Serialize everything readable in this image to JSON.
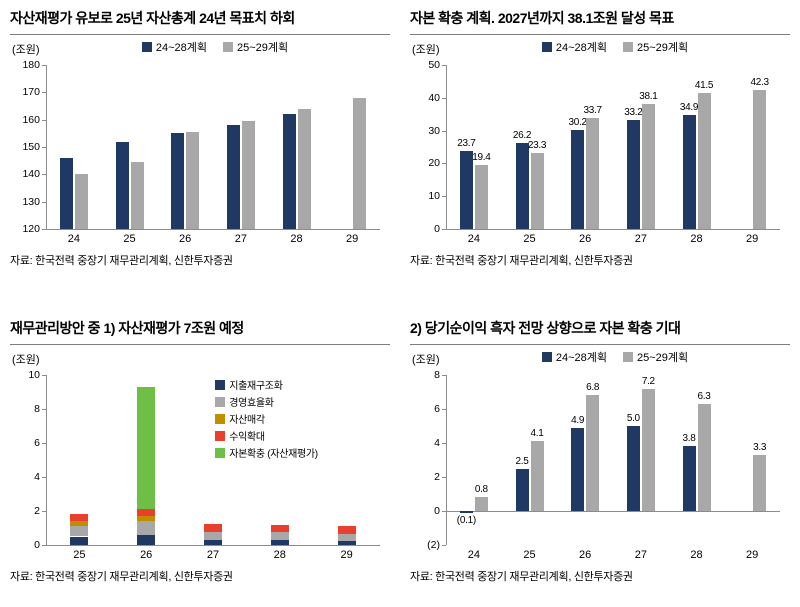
{
  "colors": {
    "navy": "#1f3864",
    "gray": "#a8a8a8",
    "olive": "#bf8f00",
    "red": "#e8402d",
    "green": "#6fbe45",
    "axis": "#8c8c8c",
    "title_rule": "#7f7f7f"
  },
  "chart_data": [
    {
      "type": "bar",
      "title": "자산재평가 유보로 25년 자산총계 24년 목표치 하회",
      "unit": "(조원)",
      "source": "자료: 한국전력 중장기 재무관리계획, 신한투자증권",
      "categories": [
        "24",
        "25",
        "26",
        "27",
        "28",
        "29"
      ],
      "series": [
        {
          "name": "24~28계획",
          "color": "navy",
          "values": [
            146,
            152,
            155,
            158,
            162,
            null
          ]
        },
        {
          "name": "25~29계획",
          "color": "gray",
          "values": [
            140,
            144.5,
            155.5,
            159.5,
            164,
            168
          ]
        }
      ],
      "ylim": [
        120,
        180
      ],
      "yticks": [
        "120",
        "130",
        "140",
        "150",
        "160",
        "170",
        "180"
      ],
      "legend_position": "top",
      "grid": false
    },
    {
      "type": "bar",
      "title": "자본 확충 계획. 2027년까지 38.1조원 달성 목표",
      "unit": "(조원)",
      "source": "자료: 한국전력 중장기 재무관리계획, 신한투자증권",
      "categories": [
        "24",
        "25",
        "26",
        "27",
        "28",
        "29"
      ],
      "series": [
        {
          "name": "24~28계획",
          "color": "navy",
          "values": [
            23.7,
            26.2,
            30.2,
            33.2,
            34.9,
            null
          ]
        },
        {
          "name": "25~29계획",
          "color": "gray",
          "values": [
            19.4,
            23.3,
            33.7,
            38.1,
            41.5,
            42.3
          ]
        }
      ],
      "labels": [
        [
          "23.7",
          "26.2",
          "30.2",
          "33.2",
          "34.9",
          null
        ],
        [
          "19.4",
          "23.3",
          "33.7",
          "38.1",
          "41.5",
          "42.3"
        ]
      ],
      "ylim": [
        0,
        50
      ],
      "yticks": [
        "0",
        "10",
        "20",
        "30",
        "40",
        "50"
      ],
      "legend_position": "top",
      "grid": false
    },
    {
      "type": "bar",
      "stacked": true,
      "title": "재무관리방안 중 1) 자산재평가 7조원 예정",
      "unit": "(조원)",
      "source": "자료: 한국전력 중장기 재무관리계획, 신한투자증권",
      "categories": [
        "25",
        "26",
        "27",
        "28",
        "29"
      ],
      "series": [
        {
          "name": "지출재구조화",
          "color": "navy",
          "values": [
            0.5,
            0.6,
            0.3,
            0.3,
            0.25
          ]
        },
        {
          "name": "경영효율화",
          "color": "gray",
          "values": [
            0.6,
            0.8,
            0.45,
            0.45,
            0.4
          ]
        },
        {
          "name": "자산매각",
          "color": "olive",
          "values": [
            0.3,
            0.3,
            0,
            0,
            0
          ]
        },
        {
          "name": "수익확대",
          "color": "red",
          "values": [
            0.45,
            0.4,
            0.5,
            0.4,
            0.45
          ]
        },
        {
          "name": "자본확충 (자산재평가)",
          "color": "green",
          "values": [
            0,
            7.2,
            0,
            0,
            0
          ]
        }
      ],
      "ylim": [
        0,
        10
      ],
      "yticks": [
        "0",
        "2",
        "4",
        "6",
        "8",
        "10"
      ],
      "legend_position": "right",
      "grid": false
    },
    {
      "type": "bar",
      "title": "2) 당기순이익 흑자 전망 상향으로 자본 확충 기대",
      "unit": "(조원)",
      "source": "자료: 한국전력 중장기 재무관리계획, 신한투자증권",
      "categories": [
        "24",
        "25",
        "26",
        "27",
        "28",
        "29"
      ],
      "series": [
        {
          "name": "24~28계획",
          "color": "navy",
          "values": [
            -0.1,
            2.5,
            4.9,
            5.0,
            3.8,
            null
          ]
        },
        {
          "name": "25~29계획",
          "color": "gray",
          "values": [
            0.8,
            4.1,
            6.8,
            7.2,
            6.3,
            3.3
          ]
        }
      ],
      "labels": [
        [
          "(0.1)",
          "2.5",
          "4.9",
          "5.0",
          "3.8",
          null
        ],
        [
          "0.8",
          "4.1",
          "6.8",
          "7.2",
          "6.3",
          "3.3"
        ]
      ],
      "ylim": [
        -2,
        8
      ],
      "yticks": [
        "(2)",
        "0",
        "2",
        "4",
        "6",
        "8"
      ],
      "legend_position": "top",
      "grid": false
    }
  ]
}
